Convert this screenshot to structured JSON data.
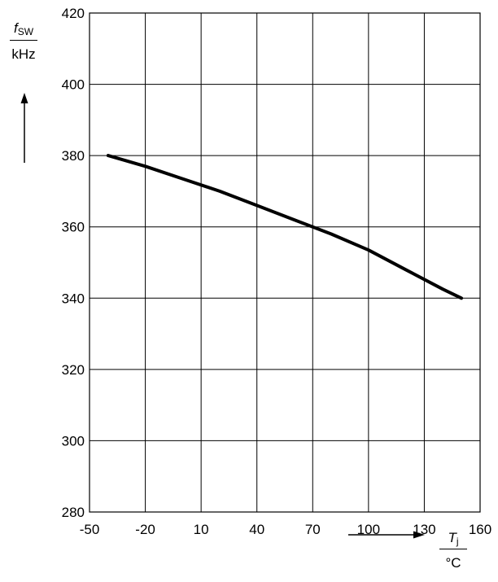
{
  "chart_data": {
    "type": "line",
    "xlabel_symbol": "T",
    "xlabel_subscript": "j",
    "xlabel_unit": "°C",
    "ylabel_symbol": "f",
    "ylabel_subscript": "SW",
    "ylabel_unit": "kHz",
    "xlim": [
      -50,
      160
    ],
    "ylim": [
      280,
      420
    ],
    "x_ticks": [
      -50,
      -20,
      10,
      40,
      70,
      100,
      130,
      160
    ],
    "y_ticks": [
      280,
      300,
      320,
      340,
      360,
      380,
      400,
      420
    ],
    "grid": true,
    "series": [
      {
        "x": [
          -40,
          -20,
          0,
          20,
          40,
          60,
          80,
          100,
          120,
          140,
          150
        ],
        "y": [
          380,
          377,
          373.5,
          370,
          366,
          362,
          358,
          353.5,
          348,
          342.5,
          340
        ]
      }
    ]
  }
}
